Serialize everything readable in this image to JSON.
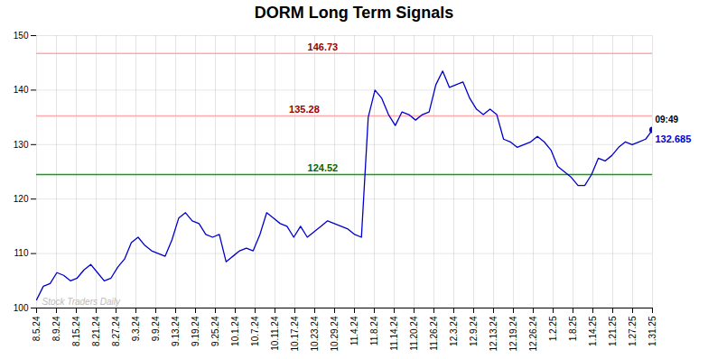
{
  "chart_data": {
    "type": "line",
    "title": "DORM Long Term Signals",
    "x": [
      0,
      0.3407,
      0.6813,
      1.022,
      1.3626,
      1.7033,
      2.044,
      2.3846,
      2.7253,
      3.0659,
      3.4066,
      3.7473,
      4.0879,
      4.4286,
      4.7692,
      5.1099,
      5.4505,
      5.7912,
      6.1319,
      6.4725,
      6.8132,
      7.1538,
      7.4945,
      7.8352,
      8.1758,
      8.5165,
      8.8571,
      9.1978,
      9.5385,
      9.8791,
      10.2198,
      10.5604,
      10.9011,
      11.2418,
      11.5824,
      11.9231,
      12.2637,
      12.6044,
      12.9451,
      13.2857,
      13.6264,
      13.967,
      14.3077,
      14.6484,
      14.989,
      15.3297,
      15.6703,
      16.011,
      16.3516,
      16.6923,
      17.033,
      17.3736,
      17.7143,
      18.0549,
      18.3956,
      18.7363,
      19.0769,
      19.4176,
      19.7582,
      20.0989,
      20.4396,
      20.7802,
      21.1209,
      21.4615,
      21.8022,
      22.1429,
      22.4835,
      22.8242,
      23.1648,
      23.5055,
      23.8462,
      24.1868,
      24.5275,
      24.8681,
      25.2088,
      25.5495,
      25.8901,
      26.2308,
      26.5714,
      26.9121,
      27.2527,
      27.5934,
      27.9341,
      28.2747,
      28.6154,
      28.956,
      29.2967,
      29.6374,
      29.978,
      30.3187,
      30.6593,
      31
    ],
    "values": [
      101.5,
      104.0,
      104.5,
      106.5,
      106.0,
      105.0,
      105.5,
      107.0,
      108.0,
      106.5,
      105.0,
      105.5,
      107.5,
      109.0,
      112.0,
      113.0,
      111.5,
      110.5,
      110.0,
      109.5,
      112.5,
      116.5,
      117.5,
      116.0,
      115.5,
      113.5,
      113.0,
      113.5,
      108.5,
      109.5,
      110.5,
      111.0,
      110.5,
      113.5,
      117.5,
      116.5,
      115.5,
      115.0,
      113.0,
      115.0,
      113.0,
      114.0,
      115.0,
      116.0,
      115.5,
      115.0,
      114.5,
      113.5,
      113.0,
      135.0,
      140.0,
      138.5,
      135.5,
      133.5,
      136.0,
      135.5,
      134.5,
      135.5,
      136.0,
      141.0,
      143.5,
      140.5,
      141.0,
      141.5,
      138.5,
      136.5,
      135.5,
      136.5,
      135.5,
      131.0,
      130.5,
      129.5,
      130.0,
      130.5,
      131.5,
      130.5,
      129.0,
      126.0,
      125.0,
      124.0,
      122.5,
      122.5,
      124.5,
      127.5,
      127.0,
      128.0,
      129.5,
      130.5,
      130.0,
      130.5,
      131.0,
      132.685
    ],
    "color": "#0000cc",
    "reference_lines": [
      {
        "value": 146.73,
        "color": "#ffaaaa",
        "label": "146.73",
        "label_color": "#990000"
      },
      {
        "value": 135.28,
        "color": "#ffaaaa",
        "label": "135.28",
        "label_color": "#990000"
      },
      {
        "value": 124.52,
        "color": "#00aa00",
        "label": "124.52",
        "label_color": "#006600"
      }
    ],
    "current": {
      "value": 132.685,
      "label": "132.685",
      "time": "09:49",
      "time_color": "#000000"
    },
    "watermark": "Stock Traders Daily",
    "watermark_color": "#bbbbbb",
    "xlim": [
      0,
      31
    ],
    "xticks": [
      {
        "value": 0,
        "label": "8.5.24"
      },
      {
        "value": 1,
        "label": "8.9.24"
      },
      {
        "value": 2,
        "label": "8.15.24"
      },
      {
        "value": 3,
        "label": "8.21.24"
      },
      {
        "value": 4,
        "label": "8.27.24"
      },
      {
        "value": 5,
        "label": "9.3.24"
      },
      {
        "value": 6,
        "label": "9.9.24"
      },
      {
        "value": 7,
        "label": "9.13.24"
      },
      {
        "value": 8,
        "label": "9.19.24"
      },
      {
        "value": 9,
        "label": "9.25.24"
      },
      {
        "value": 10,
        "label": "10.1.24"
      },
      {
        "value": 11,
        "label": "10.7.24"
      },
      {
        "value": 12,
        "label": "10.11.24"
      },
      {
        "value": 13,
        "label": "10.17.24"
      },
      {
        "value": 14,
        "label": "10.23.24"
      },
      {
        "value": 15,
        "label": "10.29.24"
      },
      {
        "value": 16,
        "label": "11.4.24"
      },
      {
        "value": 17,
        "label": "11.8.24"
      },
      {
        "value": 18,
        "label": "11.14.24"
      },
      {
        "value": 19,
        "label": "11.20.24"
      },
      {
        "value": 20,
        "label": "11.26.24"
      },
      {
        "value": 21,
        "label": "12.3.24"
      },
      {
        "value": 22,
        "label": "12.9.24"
      },
      {
        "value": 23,
        "label": "12.13.24"
      },
      {
        "value": 24,
        "label": "12.19.24"
      },
      {
        "value": 25,
        "label": "12.26.24"
      },
      {
        "value": 26,
        "label": "1.2.25"
      },
      {
        "value": 27,
        "label": "1.8.25"
      },
      {
        "value": 28,
        "label": "1.14.25"
      },
      {
        "value": 29,
        "label": "1.21.25"
      },
      {
        "value": 30,
        "label": "1.27.25"
      },
      {
        "value": 31,
        "label": "1.31.25"
      }
    ],
    "ylim": [
      100,
      150
    ],
    "yticks": [
      100,
      110,
      120,
      130,
      140,
      150
    ],
    "grid": true
  }
}
